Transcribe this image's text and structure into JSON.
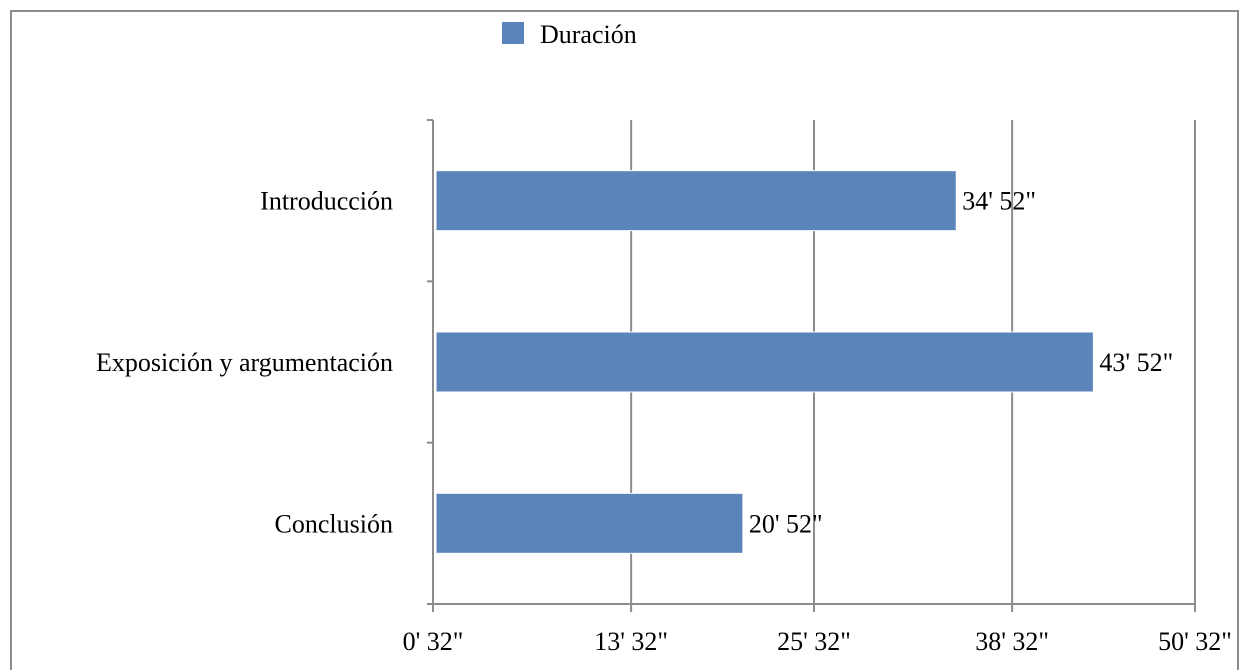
{
  "chart_data": {
    "type": "bar",
    "orientation": "horizontal",
    "categories": [
      "Introducción",
      "Exposición y argumentación",
      "Conclusión"
    ],
    "series": [
      {
        "name": "Duración",
        "values_seconds": [
          2092,
          2632,
          1252
        ],
        "value_labels": [
          "34' 52\"",
          "43' 52\"",
          "20' 52\""
        ]
      }
    ],
    "x_ticks_seconds": [
      32,
      812,
      1532,
      2312,
      3032
    ],
    "x_tick_labels": [
      "0' 32\"",
      "13' 32\"",
      "25' 32\"",
      "38' 32\"",
      "50' 32\""
    ],
    "xlim_seconds": [
      32,
      3032
    ],
    "legend_position": "top",
    "grid": "vertical",
    "bar_color": "#5b85ba",
    "grid_color": "#8c8c8c"
  }
}
